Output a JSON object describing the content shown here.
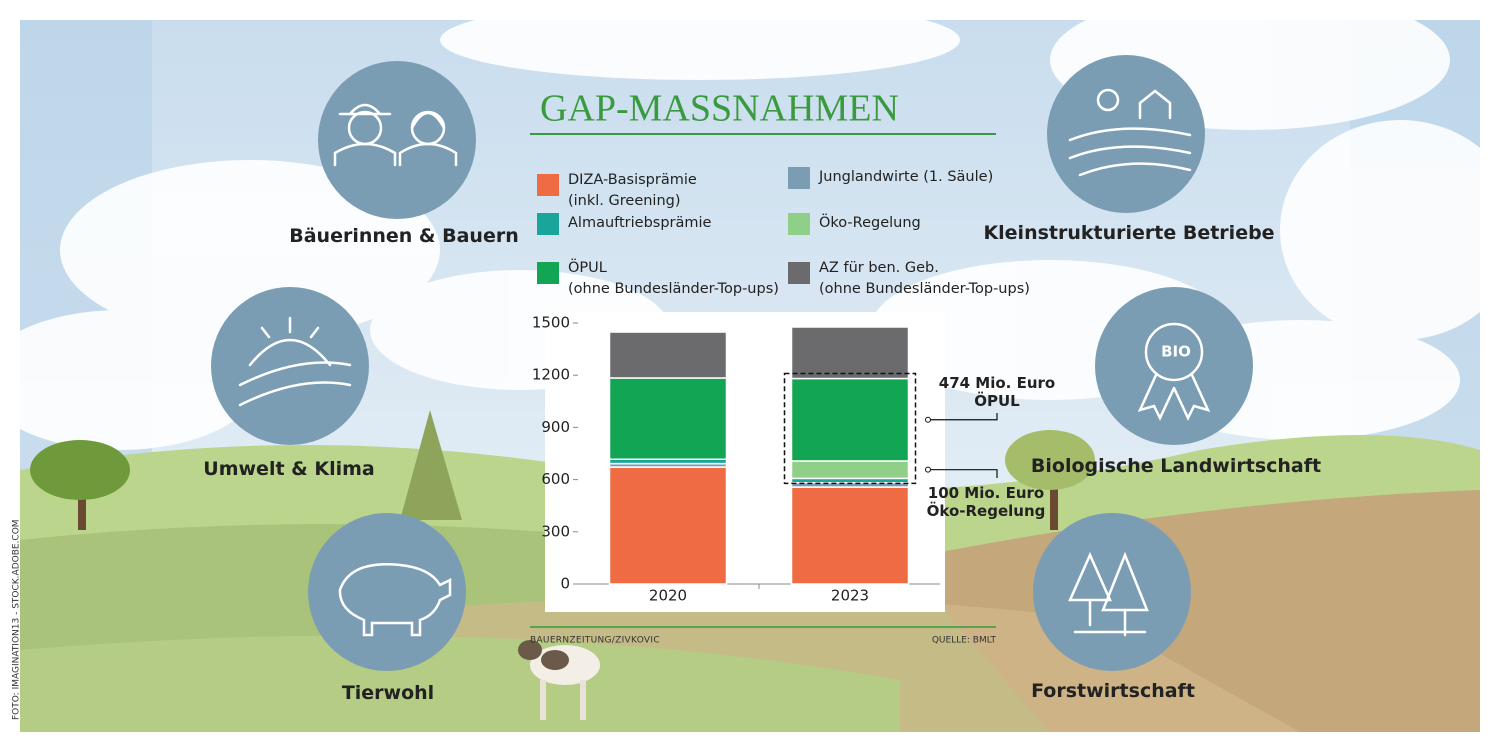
{
  "chart_data": {
    "type": "bar",
    "stacked": true,
    "title": "GAP-MASSNAHMEN",
    "categories": [
      "2020",
      "2023"
    ],
    "series": [
      {
        "name": "DIZA-Basisprämie\n(inkl. Greening)",
        "color": "#ee6b43",
        "values": [
          672,
          557
        ]
      },
      {
        "name": "Junglandwirte (1. Säule)",
        "color": "#7a9db4",
        "values": [
          20,
          25
        ]
      },
      {
        "name": "Almauftriebsprämie",
        "color": "#1aa59a",
        "values": [
          25,
          25
        ]
      },
      {
        "name": "Öko-Regelung",
        "color": "#8fcf88",
        "values": [
          null,
          100
        ]
      },
      {
        "name": "ÖPUL\n(ohne Bundesländer-Top-ups)",
        "color": "#12a553",
        "values": [
          467,
          474
        ]
      },
      {
        "name": "AZ für ben. Geb.\n(ohne Bundesländer-Top-ups)",
        "color": "#6b6b6e",
        "values": [
          264,
          296
        ]
      }
    ],
    "ylim": [
      0,
      1500
    ],
    "yticks": [
      0,
      300,
      600,
      900,
      1200,
      1500
    ],
    "annotations": [
      {
        "text": "474 Mio. Euro\nÖPUL"
      },
      {
        "text": "100 Mio. Euro\nÖko-Regelung"
      }
    ],
    "author": "BAUERNZEITUNG/ZIVKOVIC",
    "source": "QUELLE: BMLT"
  },
  "topics": [
    {
      "label": "Bäuerinnen & Bauern"
    },
    {
      "label": "Umwelt & Klima"
    },
    {
      "label": "Tierwohl"
    },
    {
      "label": "Kleinstrukturierte Betriebe"
    },
    {
      "label": "Biologische Landwirtschaft"
    },
    {
      "label": "Forstwirtschaft"
    }
  ],
  "photo_credit": "FOTO: IMAGINATION13 - STOCK.ADOBE.COM"
}
